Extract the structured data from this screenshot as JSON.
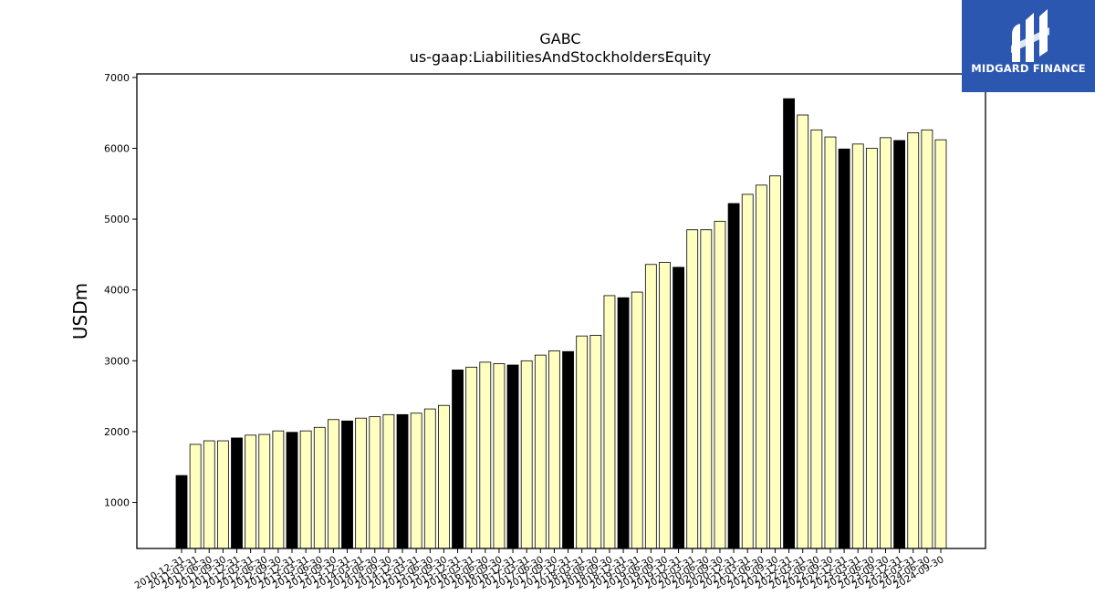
{
  "brand": {
    "name": "MIDGARD FINANCE",
    "background": "#2b57b0"
  },
  "colors": {
    "annual_bar": "#000000",
    "quarter_bar": "#ffffc0",
    "bar_edge": "#000000"
  },
  "chart_data": {
    "type": "bar",
    "title": "GABC",
    "subtitle": "us-gaap:LiabilitiesAndStockholdersEquity",
    "ylabel": "USDm",
    "xlabel": "",
    "ylim": [
      350,
      7050
    ],
    "yticks": [
      1000,
      2000,
      3000,
      4000,
      5000,
      6000,
      7000
    ],
    "grid": false,
    "categories": [
      "2010-12-31",
      "2011-03-31",
      "2011-06-30",
      "2011-09-30",
      "2011-12-31",
      "2012-03-31",
      "2012-06-30",
      "2012-09-30",
      "2012-12-31",
      "2013-03-31",
      "2013-06-30",
      "2013-09-30",
      "2013-12-31",
      "2014-03-31",
      "2014-06-30",
      "2014-09-30",
      "2014-12-31",
      "2015-03-31",
      "2015-06-30",
      "2015-09-30",
      "2015-12-31",
      "2016-03-31",
      "2016-06-30",
      "2016-09-30",
      "2016-12-31",
      "2017-03-31",
      "2017-06-30",
      "2017-09-30",
      "2017-12-31",
      "2018-03-31",
      "2018-06-30",
      "2018-09-30",
      "2018-12-31",
      "2019-03-31",
      "2019-06-30",
      "2019-09-30",
      "2019-12-31",
      "2020-03-31",
      "2020-06-30",
      "2020-09-30",
      "2020-12-31",
      "2021-03-31",
      "2021-06-30",
      "2021-09-30",
      "2021-12-31",
      "2022-03-31",
      "2022-06-30",
      "2022-09-30",
      "2022-12-31",
      "2023-03-31",
      "2023-06-30",
      "2023-09-30",
      "2023-12-31",
      "2024-03-31",
      "2024-06-30",
      "2024-09-30"
    ],
    "values": [
      1380,
      1820,
      1870,
      1870,
      1910,
      1950,
      1960,
      2010,
      1990,
      2010,
      2060,
      2170,
      2150,
      2190,
      2210,
      2240,
      2240,
      2260,
      2320,
      2370,
      2870,
      2910,
      2980,
      2960,
      2940,
      3000,
      3080,
      3140,
      3130,
      3350,
      3360,
      3920,
      3890,
      3970,
      4360,
      4390,
      4320,
      4850,
      4850,
      4970,
      5220,
      5350,
      5480,
      5610,
      6700,
      6470,
      6260,
      6160,
      5990,
      6060,
      6000,
      6150,
      6110,
      6220,
      6260,
      6120
    ],
    "annual_flags": [
      1,
      0,
      0,
      0,
      1,
      0,
      0,
      0,
      1,
      0,
      0,
      0,
      1,
      0,
      0,
      0,
      1,
      0,
      0,
      0,
      1,
      0,
      0,
      0,
      1,
      0,
      0,
      0,
      1,
      0,
      0,
      0,
      1,
      0,
      0,
      0,
      1,
      0,
      0,
      0,
      1,
      0,
      0,
      0,
      1,
      0,
      0,
      0,
      1,
      0,
      0,
      0,
      1,
      0,
      0,
      0
    ]
  }
}
